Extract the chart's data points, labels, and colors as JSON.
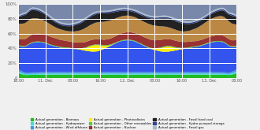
{
  "title": "",
  "x_labels": [
    "16:00",
    "11. Dec",
    "08:00",
    "16:00",
    "12. Dec",
    "08:00",
    "16:00",
    "13. Dec",
    "08:00"
  ],
  "y_ticks": [
    0,
    20,
    40,
    60,
    80,
    100
  ],
  "background_color": "#f0f0f0",
  "grid_color": "#ffffff",
  "layers": [
    {
      "name": "Actual generation - Biomass",
      "color": "#22bb22"
    },
    {
      "name": "Actual generation - Hydropower",
      "color": "#44dddd"
    },
    {
      "name": "Actual generation - Wind offshore",
      "color": "#4499dd"
    },
    {
      "name": "Actual generation - Wind onshore",
      "color": "#3355ee"
    },
    {
      "name": "Actual generation - Photovoltaics",
      "color": "#ffee00"
    },
    {
      "name": "Actual generation - Other renewables",
      "color": "#55cc44"
    },
    {
      "name": "Actual generation - Nuclear",
      "color": "#993333"
    },
    {
      "name": "Actual generation - Fossil brown coal",
      "color": "#bb8844"
    },
    {
      "name": "Actual generation - Fossil hard coal",
      "color": "#222222"
    },
    {
      "name": "Actual generation - Hydro pumped storage",
      "color": "#334488"
    },
    {
      "name": "Actual generation - Fossil gas",
      "color": "#aabbcc"
    },
    {
      "name": "Actual generation - Other conventional",
      "color": "#7788aa"
    }
  ]
}
